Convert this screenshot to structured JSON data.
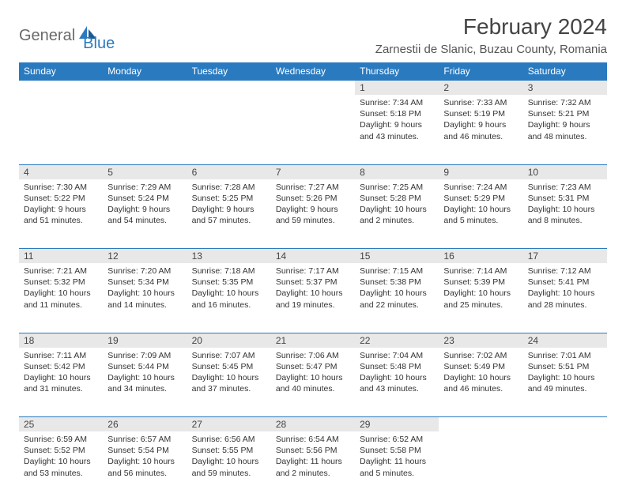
{
  "logo": {
    "gen": "General",
    "blue": "Blue"
  },
  "title": "February 2024",
  "location": "Zarnestii de Slanic, Buzau County, Romania",
  "weekday_labels": [
    "Sunday",
    "Monday",
    "Tuesday",
    "Wednesday",
    "Thursday",
    "Friday",
    "Saturday"
  ],
  "colors": {
    "header_bg": "#2a7abf",
    "header_text": "#ffffff",
    "daynum_bg": "#e8e8e8",
    "divider": "#2a7abf",
    "body_text": "#333333"
  },
  "grid": [
    [
      null,
      null,
      null,
      null,
      {
        "n": "1",
        "sr": "Sunrise: 7:34 AM",
        "ss": "Sunset: 5:18 PM",
        "d1": "Daylight: 9 hours",
        "d2": "and 43 minutes."
      },
      {
        "n": "2",
        "sr": "Sunrise: 7:33 AM",
        "ss": "Sunset: 5:19 PM",
        "d1": "Daylight: 9 hours",
        "d2": "and 46 minutes."
      },
      {
        "n": "3",
        "sr": "Sunrise: 7:32 AM",
        "ss": "Sunset: 5:21 PM",
        "d1": "Daylight: 9 hours",
        "d2": "and 48 minutes."
      }
    ],
    [
      {
        "n": "4",
        "sr": "Sunrise: 7:30 AM",
        "ss": "Sunset: 5:22 PM",
        "d1": "Daylight: 9 hours",
        "d2": "and 51 minutes."
      },
      {
        "n": "5",
        "sr": "Sunrise: 7:29 AM",
        "ss": "Sunset: 5:24 PM",
        "d1": "Daylight: 9 hours",
        "d2": "and 54 minutes."
      },
      {
        "n": "6",
        "sr": "Sunrise: 7:28 AM",
        "ss": "Sunset: 5:25 PM",
        "d1": "Daylight: 9 hours",
        "d2": "and 57 minutes."
      },
      {
        "n": "7",
        "sr": "Sunrise: 7:27 AM",
        "ss": "Sunset: 5:26 PM",
        "d1": "Daylight: 9 hours",
        "d2": "and 59 minutes."
      },
      {
        "n": "8",
        "sr": "Sunrise: 7:25 AM",
        "ss": "Sunset: 5:28 PM",
        "d1": "Daylight: 10 hours",
        "d2": "and 2 minutes."
      },
      {
        "n": "9",
        "sr": "Sunrise: 7:24 AM",
        "ss": "Sunset: 5:29 PM",
        "d1": "Daylight: 10 hours",
        "d2": "and 5 minutes."
      },
      {
        "n": "10",
        "sr": "Sunrise: 7:23 AM",
        "ss": "Sunset: 5:31 PM",
        "d1": "Daylight: 10 hours",
        "d2": "and 8 minutes."
      }
    ],
    [
      {
        "n": "11",
        "sr": "Sunrise: 7:21 AM",
        "ss": "Sunset: 5:32 PM",
        "d1": "Daylight: 10 hours",
        "d2": "and 11 minutes."
      },
      {
        "n": "12",
        "sr": "Sunrise: 7:20 AM",
        "ss": "Sunset: 5:34 PM",
        "d1": "Daylight: 10 hours",
        "d2": "and 14 minutes."
      },
      {
        "n": "13",
        "sr": "Sunrise: 7:18 AM",
        "ss": "Sunset: 5:35 PM",
        "d1": "Daylight: 10 hours",
        "d2": "and 16 minutes."
      },
      {
        "n": "14",
        "sr": "Sunrise: 7:17 AM",
        "ss": "Sunset: 5:37 PM",
        "d1": "Daylight: 10 hours",
        "d2": "and 19 minutes."
      },
      {
        "n": "15",
        "sr": "Sunrise: 7:15 AM",
        "ss": "Sunset: 5:38 PM",
        "d1": "Daylight: 10 hours",
        "d2": "and 22 minutes."
      },
      {
        "n": "16",
        "sr": "Sunrise: 7:14 AM",
        "ss": "Sunset: 5:39 PM",
        "d1": "Daylight: 10 hours",
        "d2": "and 25 minutes."
      },
      {
        "n": "17",
        "sr": "Sunrise: 7:12 AM",
        "ss": "Sunset: 5:41 PM",
        "d1": "Daylight: 10 hours",
        "d2": "and 28 minutes."
      }
    ],
    [
      {
        "n": "18",
        "sr": "Sunrise: 7:11 AM",
        "ss": "Sunset: 5:42 PM",
        "d1": "Daylight: 10 hours",
        "d2": "and 31 minutes."
      },
      {
        "n": "19",
        "sr": "Sunrise: 7:09 AM",
        "ss": "Sunset: 5:44 PM",
        "d1": "Daylight: 10 hours",
        "d2": "and 34 minutes."
      },
      {
        "n": "20",
        "sr": "Sunrise: 7:07 AM",
        "ss": "Sunset: 5:45 PM",
        "d1": "Daylight: 10 hours",
        "d2": "and 37 minutes."
      },
      {
        "n": "21",
        "sr": "Sunrise: 7:06 AM",
        "ss": "Sunset: 5:47 PM",
        "d1": "Daylight: 10 hours",
        "d2": "and 40 minutes."
      },
      {
        "n": "22",
        "sr": "Sunrise: 7:04 AM",
        "ss": "Sunset: 5:48 PM",
        "d1": "Daylight: 10 hours",
        "d2": "and 43 minutes."
      },
      {
        "n": "23",
        "sr": "Sunrise: 7:02 AM",
        "ss": "Sunset: 5:49 PM",
        "d1": "Daylight: 10 hours",
        "d2": "and 46 minutes."
      },
      {
        "n": "24",
        "sr": "Sunrise: 7:01 AM",
        "ss": "Sunset: 5:51 PM",
        "d1": "Daylight: 10 hours",
        "d2": "and 49 minutes."
      }
    ],
    [
      {
        "n": "25",
        "sr": "Sunrise: 6:59 AM",
        "ss": "Sunset: 5:52 PM",
        "d1": "Daylight: 10 hours",
        "d2": "and 53 minutes."
      },
      {
        "n": "26",
        "sr": "Sunrise: 6:57 AM",
        "ss": "Sunset: 5:54 PM",
        "d1": "Daylight: 10 hours",
        "d2": "and 56 minutes."
      },
      {
        "n": "27",
        "sr": "Sunrise: 6:56 AM",
        "ss": "Sunset: 5:55 PM",
        "d1": "Daylight: 10 hours",
        "d2": "and 59 minutes."
      },
      {
        "n": "28",
        "sr": "Sunrise: 6:54 AM",
        "ss": "Sunset: 5:56 PM",
        "d1": "Daylight: 11 hours",
        "d2": "and 2 minutes."
      },
      {
        "n": "29",
        "sr": "Sunrise: 6:52 AM",
        "ss": "Sunset: 5:58 PM",
        "d1": "Daylight: 11 hours",
        "d2": "and 5 minutes."
      },
      null,
      null
    ]
  ]
}
